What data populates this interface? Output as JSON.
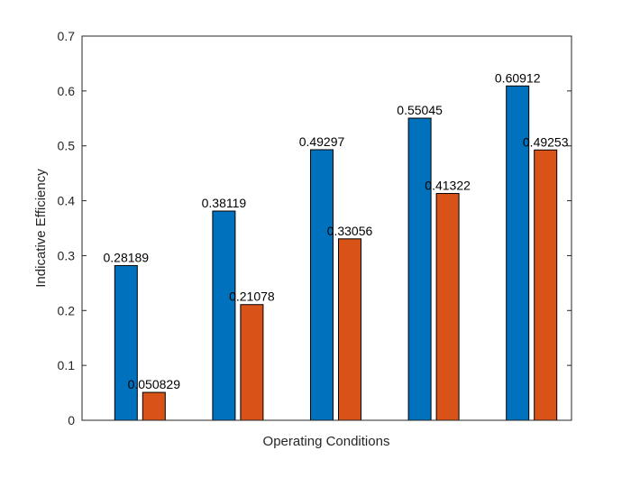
{
  "chart_data": {
    "type": "bar",
    "title": "",
    "xlabel": "Operating Conditions",
    "ylabel": "Indicative Efficiency",
    "ylim": [
      0,
      0.7
    ],
    "yticks": [
      0,
      0.1,
      0.2,
      0.3,
      0.4,
      0.5,
      0.6,
      0.7
    ],
    "ytick_labels": [
      "0",
      "0.1",
      "0.2",
      "0.3",
      "0.4",
      "0.5",
      "0.6",
      "0.7"
    ],
    "categories": [
      "",
      "",
      "",
      "",
      ""
    ],
    "series": [
      {
        "color": "#0072BD",
        "values": [
          0.28189,
          0.38119,
          0.49297,
          0.55045,
          0.60912
        ],
        "labels": [
          "0.28189",
          "0.38119",
          "0.49297",
          "0.55045",
          "0.60912"
        ]
      },
      {
        "color": "#D95319",
        "values": [
          0.050829,
          0.21078,
          0.33056,
          0.41322,
          0.49253
        ],
        "labels": [
          "0.050829",
          "0.21078",
          "0.33056",
          "0.41322",
          "0.49253"
        ]
      }
    ],
    "grid": false,
    "legend": "none"
  }
}
